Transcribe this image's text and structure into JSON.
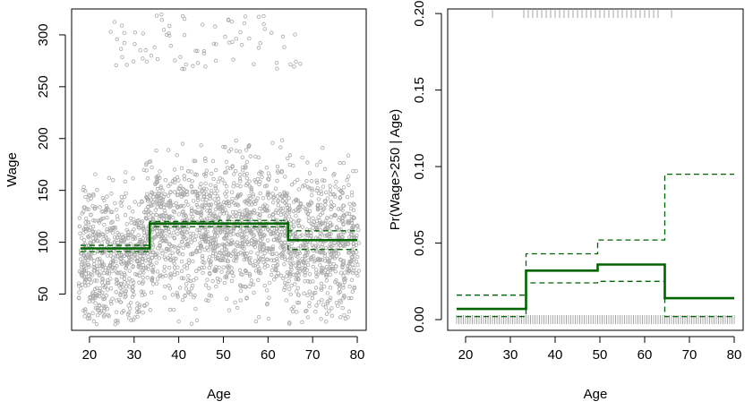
{
  "colors": {
    "points": "#a8a8a8",
    "fit": "#006400",
    "band": "#006400",
    "rug": "#a8a8a8",
    "axis": "#000000"
  },
  "chart_data": [
    {
      "type": "scatter",
      "xlabel": "Age",
      "ylabel": "Wage",
      "title": "",
      "xlim": [
        16,
        82
      ],
      "ylim": [
        15,
        325
      ],
      "xticks": [
        20,
        30,
        40,
        50,
        60,
        70,
        80
      ],
      "yticks": [
        50,
        100,
        150,
        200,
        250,
        300
      ],
      "grid": false,
      "legend": "none",
      "series": [
        {
          "kind": "scatter-points",
          "description_x_range": [
            18,
            80
          ],
          "clusters": [
            {
              "x": [
                18,
                80
              ],
              "y": [
                20,
                200
              ],
              "approx_count": 2500
            },
            {
              "x": [
                25,
                70
              ],
              "y": [
                255,
                320
              ],
              "approx_count": 80
            }
          ]
        },
        {
          "kind": "step-fit",
          "steps": [
            {
              "x": [
                18,
                33.5
              ],
              "y": 94
            },
            {
              "x": [
                33.5,
                49
              ],
              "y": 118
            },
            {
              "x": [
                49,
                64.5
              ],
              "y": 118
            },
            {
              "x": [
                64.5,
                80
              ],
              "y": 102
            }
          ],
          "band_upper": [
            {
              "x": [
                18,
                33.5
              ],
              "y": 97
            },
            {
              "x": [
                33.5,
                49
              ],
              "y": 120
            },
            {
              "x": [
                49,
                64.5
              ],
              "y": 121
            },
            {
              "x": [
                64.5,
                80
              ],
              "y": 111
            }
          ],
          "band_lower": [
            {
              "x": [
                18,
                33.5
              ],
              "y": 91
            },
            {
              "x": [
                33.5,
                49
              ],
              "y": 115
            },
            {
              "x": [
                49,
                64.5
              ],
              "y": 115
            },
            {
              "x": [
                64.5,
                80
              ],
              "y": 93
            }
          ]
        }
      ]
    },
    {
      "type": "line",
      "xlabel": "Age",
      "ylabel": "Pr(Wage>250 | Age)",
      "title": "",
      "xlim": [
        16,
        82
      ],
      "ylim": [
        -0.007,
        0.203
      ],
      "xticks": [
        20,
        30,
        40,
        50,
        60,
        70,
        80
      ],
      "yticks": [
        0.0,
        0.05,
        0.1,
        0.15,
        0.2
      ],
      "ytick_labels": [
        "0.00",
        "0.05",
        "0.10",
        "0.15",
        "0.20"
      ],
      "grid": false,
      "legend": "none",
      "steps": [
        {
          "x": [
            18,
            33.5
          ],
          "y": 0.007
        },
        {
          "x": [
            33.5,
            49.5
          ],
          "y": 0.032
        },
        {
          "x": [
            49.5,
            64.5
          ],
          "y": 0.036
        },
        {
          "x": [
            64.5,
            80
          ],
          "y": 0.014
        }
      ],
      "band_upper": [
        {
          "x": [
            18,
            33.5
          ],
          "y": 0.016
        },
        {
          "x": [
            33.5,
            49.5
          ],
          "y": 0.043
        },
        {
          "x": [
            49.5,
            64.5
          ],
          "y": 0.052
        },
        {
          "x": [
            64.5,
            80
          ],
          "y": 0.095
        }
      ],
      "band_lower": [
        {
          "x": [
            18,
            33.5
          ],
          "y": 0.002
        },
        {
          "x": [
            33.5,
            49.5
          ],
          "y": 0.024
        },
        {
          "x": [
            49.5,
            64.5
          ],
          "y": 0.025
        },
        {
          "x": [
            64.5,
            80
          ],
          "y": 0.002
        }
      ],
      "rug_top_y": 0.2,
      "rug_top_x": [
        26,
        33,
        34,
        35,
        36,
        37,
        38,
        39,
        40,
        41,
        42,
        43,
        44,
        45,
        46,
        47,
        48,
        49,
        50,
        51,
        52,
        53,
        54,
        55,
        56,
        57,
        58,
        59,
        60,
        61,
        62,
        63,
        66
      ],
      "rug_bottom_y": 0.0,
      "rug_bottom_x_range": [
        18,
        80
      ]
    }
  ]
}
